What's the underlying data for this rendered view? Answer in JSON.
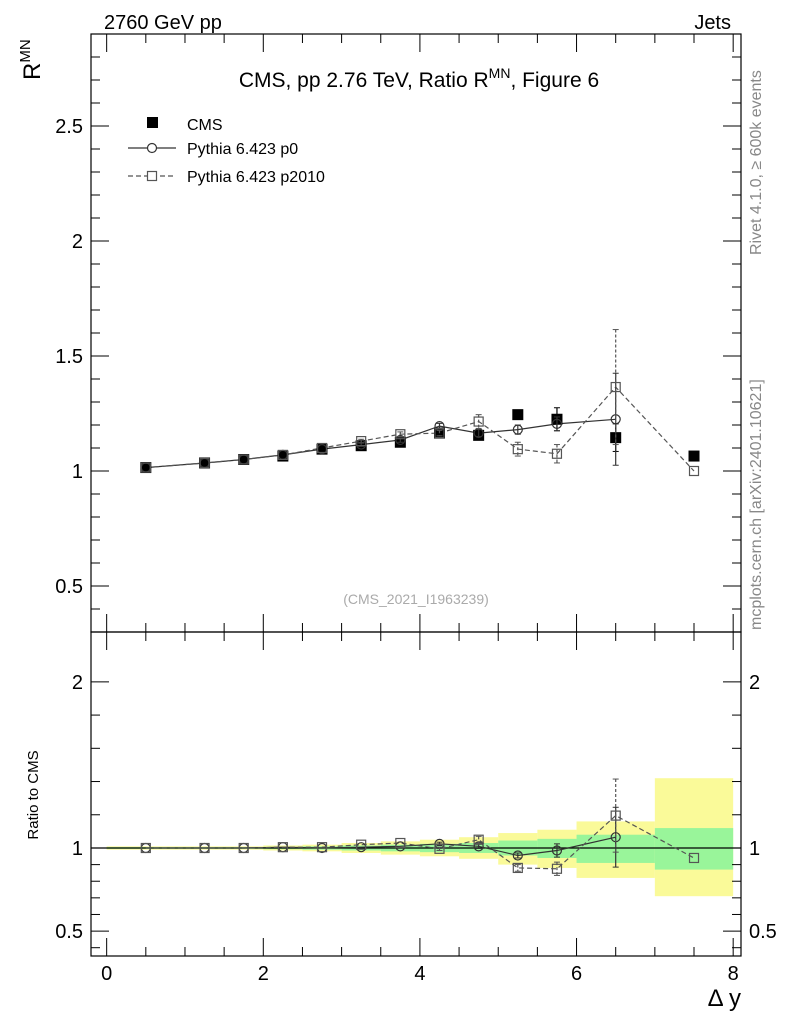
{
  "header": {
    "left": "2760 GeV pp",
    "right": "Jets"
  },
  "title": {
    "main": "CMS, pp 2.76 TeV, Ratio R",
    "sup": "MN",
    "tail": ", Figure 6"
  },
  "ylabel": {
    "main": "R",
    "sup": "MN"
  },
  "side_texts": {
    "rivet": "Rivet 4.1.0, ≥ 600k events",
    "mcplots": "mcplots.cern.ch [arXiv:2401.10621]"
  },
  "analysis_id": "(CMS_2021_I1963239)",
  "ratio_ylabel": "Ratio to CMS",
  "xlabel": "Δ y",
  "colors": {
    "band_inner": "#99f59a",
    "band_outer": "#fafa99",
    "data": "#000000",
    "p0": "#333333",
    "p2010": "#555555"
  },
  "chart_data": [
    {
      "type": "scatter",
      "panel": "main",
      "title": "CMS, pp 2.76 TeV, Ratio R^MN, Figure 6",
      "xlabel": "Δ y",
      "ylabel": "R^MN",
      "xlim": [
        -0.2,
        8.1
      ],
      "ylim": [
        0.3,
        2.9
      ],
      "xticks": [
        0,
        2,
        4,
        6,
        8
      ],
      "yticks": [
        0.5,
        1,
        1.5,
        2,
        2.5
      ],
      "ytick_labels": [
        "0.5",
        "1",
        "1.5",
        "2",
        "2.5"
      ],
      "legend_position": "top-left",
      "series": [
        {
          "name": "CMS",
          "style": "filled-square",
          "x": [
            0.5,
            1.25,
            1.75,
            2.25,
            2.75,
            3.25,
            3.75,
            4.25,
            4.75,
            5.25,
            5.75,
            6.5,
            7.5
          ],
          "y": [
            1.015,
            1.035,
            1.05,
            1.065,
            1.095,
            1.11,
            1.125,
            1.165,
            1.155,
            1.245,
            1.225,
            1.145,
            1.065
          ],
          "yerr": [
            0.005,
            0.005,
            0.005,
            0.005,
            0.008,
            0.01,
            0.01,
            0.012,
            0.015,
            0.02,
            0.05,
            0.06,
            0.005
          ]
        },
        {
          "name": "Pythia 6.423 p0",
          "style": "open-circle-solid",
          "x": [
            0.5,
            1.25,
            1.75,
            2.25,
            2.75,
            3.25,
            3.75,
            4.25,
            4.75,
            5.25,
            5.75,
            6.5
          ],
          "y": [
            1.015,
            1.035,
            1.05,
            1.07,
            1.095,
            1.115,
            1.135,
            1.195,
            1.165,
            1.18,
            1.205,
            1.225
          ],
          "yerr": [
            0.003,
            0.003,
            0.004,
            0.005,
            0.006,
            0.008,
            0.01,
            0.012,
            0.015,
            0.02,
            0.03,
            0.2
          ]
        },
        {
          "name": "Pythia 6.423 p2010",
          "style": "open-square-dashed",
          "x": [
            0.5,
            1.25,
            1.75,
            2.25,
            2.75,
            3.25,
            3.75,
            4.25,
            4.75,
            5.25,
            5.75,
            6.5,
            7.5
          ],
          "y": [
            1.015,
            1.035,
            1.05,
            1.07,
            1.1,
            1.13,
            1.16,
            1.165,
            1.215,
            1.095,
            1.075,
            1.365,
            1.0
          ],
          "yerr": [
            0.003,
            0.003,
            0.004,
            0.005,
            0.006,
            0.008,
            0.01,
            0.012,
            0.03,
            0.03,
            0.04,
            0.25,
            0.005
          ]
        }
      ]
    },
    {
      "type": "scatter",
      "panel": "ratio",
      "ylabel": "Ratio to CMS",
      "xlabel": "Δ y",
      "xlim": [
        -0.2,
        8.1
      ],
      "ylim": [
        0.35,
        2.3
      ],
      "xticks": [
        0,
        2,
        4,
        6,
        8
      ],
      "xtick_labels": [
        "0",
        "2",
        "4",
        "6",
        "8"
      ],
      "yticks": [
        0.5,
        1,
        2
      ],
      "ytick_labels": [
        "0.5",
        "1",
        "2"
      ],
      "bands": [
        {
          "x0": 0.0,
          "x1": 1.0,
          "inner": [
            0.995,
            1.005
          ],
          "outer": [
            0.99,
            1.01
          ]
        },
        {
          "x0": 1.0,
          "x1": 1.5,
          "inner": [
            0.995,
            1.005
          ],
          "outer": [
            0.99,
            1.01
          ]
        },
        {
          "x0": 1.5,
          "x1": 2.0,
          "inner": [
            0.995,
            1.005
          ],
          "outer": [
            0.99,
            1.01
          ]
        },
        {
          "x0": 2.0,
          "x1": 2.5,
          "inner": [
            0.993,
            1.007
          ],
          "outer": [
            0.985,
            1.015
          ]
        },
        {
          "x0": 2.5,
          "x1": 3.0,
          "inner": [
            0.99,
            1.01
          ],
          "outer": [
            0.98,
            1.02
          ]
        },
        {
          "x0": 3.0,
          "x1": 3.5,
          "inner": [
            0.985,
            1.015
          ],
          "outer": [
            0.97,
            1.03
          ]
        },
        {
          "x0": 3.5,
          "x1": 4.0,
          "inner": [
            0.98,
            1.02
          ],
          "outer": [
            0.96,
            1.04
          ]
        },
        {
          "x0": 4.0,
          "x1": 4.5,
          "inner": [
            0.975,
            1.025
          ],
          "outer": [
            0.95,
            1.05
          ]
        },
        {
          "x0": 4.5,
          "x1": 5.0,
          "inner": [
            0.97,
            1.03
          ],
          "outer": [
            0.935,
            1.065
          ]
        },
        {
          "x0": 5.0,
          "x1": 5.5,
          "inner": [
            0.955,
            1.045
          ],
          "outer": [
            0.9,
            1.09
          ]
        },
        {
          "x0": 5.5,
          "x1": 6.0,
          "inner": [
            0.94,
            1.055
          ],
          "outer": [
            0.88,
            1.11
          ]
        },
        {
          "x0": 6.0,
          "x1": 7.0,
          "inner": [
            0.91,
            1.08
          ],
          "outer": [
            0.82,
            1.16
          ]
        },
        {
          "x0": 7.0,
          "x1": 8.0,
          "inner": [
            0.87,
            1.12
          ],
          "outer": [
            0.71,
            1.42
          ]
        }
      ],
      "series": [
        {
          "name": "Pythia 6.423 p0",
          "style": "open-circle-solid",
          "x": [
            0.5,
            1.25,
            1.75,
            2.25,
            2.75,
            3.25,
            3.75,
            4.25,
            4.75,
            5.25,
            5.75,
            6.5
          ],
          "y": [
            1.0,
            1.0,
            1.0,
            1.005,
            1.0,
            1.005,
            1.01,
            1.025,
            1.01,
            0.955,
            0.985,
            1.065
          ],
          "yerr": [
            0.002,
            0.002,
            0.002,
            0.003,
            0.004,
            0.006,
            0.008,
            0.01,
            0.013,
            0.015,
            0.04,
            0.18
          ]
        },
        {
          "name": "Pythia 6.423 p2010",
          "style": "open-square-dashed",
          "x": [
            0.5,
            1.25,
            1.75,
            2.25,
            2.75,
            3.25,
            3.75,
            4.25,
            4.75,
            5.25,
            5.75,
            6.5,
            7.5
          ],
          "y": [
            1.0,
            1.0,
            1.0,
            1.005,
            1.005,
            1.02,
            1.03,
            0.995,
            1.05,
            0.88,
            0.875,
            1.195,
            0.94
          ],
          "yerr": [
            0.002,
            0.002,
            0.002,
            0.003,
            0.004,
            0.006,
            0.008,
            0.01,
            0.02,
            0.02,
            0.04,
            0.22,
            0.005
          ]
        }
      ]
    }
  ]
}
